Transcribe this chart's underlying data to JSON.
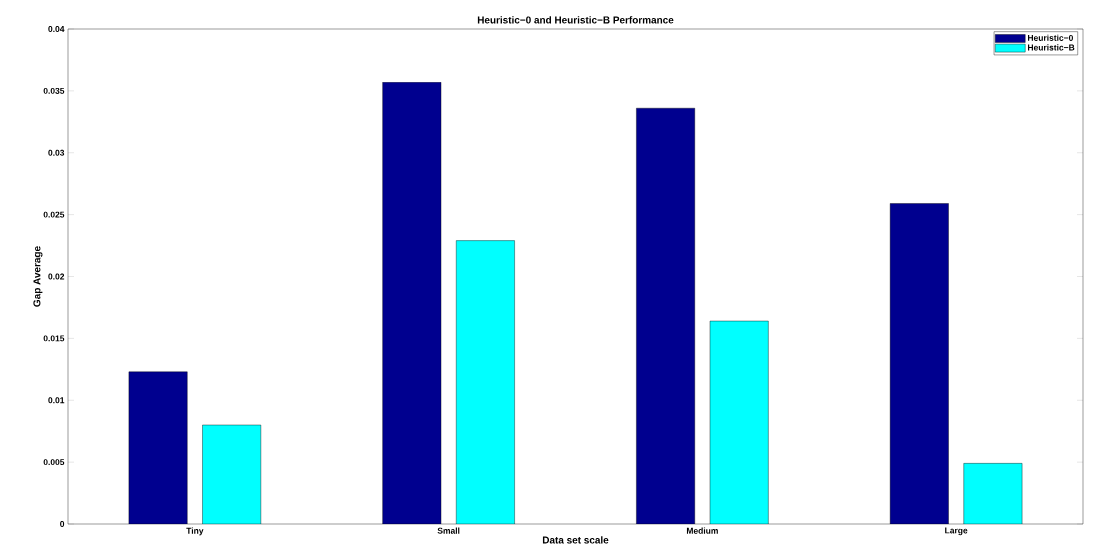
{
  "chart_data": {
    "type": "bar",
    "title": "Heuristic−0 and Heuristic−B Performance",
    "xlabel": "Data set scale",
    "ylabel": "Gap Average",
    "categories": [
      "Tiny",
      "Small",
      "Medium",
      "Large"
    ],
    "series": [
      {
        "name": "Heuristic−0",
        "color": "#00008f",
        "values": [
          0.0123,
          0.0357,
          0.0336,
          0.0259
        ]
      },
      {
        "name": "Heuristic−B",
        "color": "#00ffff",
        "values": [
          0.008,
          0.0229,
          0.0164,
          0.0049
        ]
      }
    ],
    "ylim": [
      0,
      0.04
    ],
    "yticks": [
      0,
      0.005,
      0.01,
      0.015,
      0.02,
      0.025,
      0.03,
      0.035,
      0.04
    ],
    "legend": "top right"
  }
}
